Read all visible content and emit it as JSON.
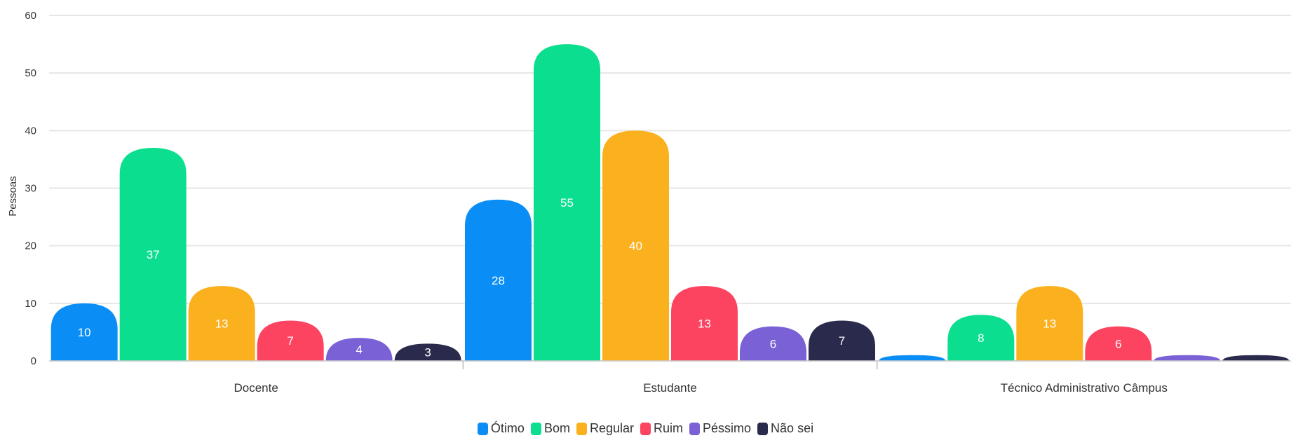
{
  "chart_data": {
    "type": "bar",
    "ylabel": "Pessoas",
    "ylim": [
      0,
      60
    ],
    "yticks": [
      0,
      10,
      20,
      30,
      40,
      50,
      60
    ],
    "grid": true,
    "legend_position": "bottom-center",
    "categories": [
      "Docente",
      "Estudante",
      "Técnico Administrativo Câmpus"
    ],
    "series": [
      {
        "name": "Ótimo",
        "color": "#0a8ef5",
        "values": [
          10,
          28,
          1
        ]
      },
      {
        "name": "Bom",
        "color": "#0bdf8f",
        "values": [
          37,
          55,
          8
        ]
      },
      {
        "name": "Regular",
        "color": "#fbb01e",
        "values": [
          13,
          40,
          13
        ]
      },
      {
        "name": "Ruim",
        "color": "#fc4461",
        "values": [
          7,
          13,
          6
        ]
      },
      {
        "name": "Péssimo",
        "color": "#7a62d6",
        "values": [
          4,
          6,
          1
        ]
      },
      {
        "name": "Não sei",
        "color": "#2a2a4d",
        "values": [
          3,
          7,
          1
        ]
      }
    ]
  }
}
